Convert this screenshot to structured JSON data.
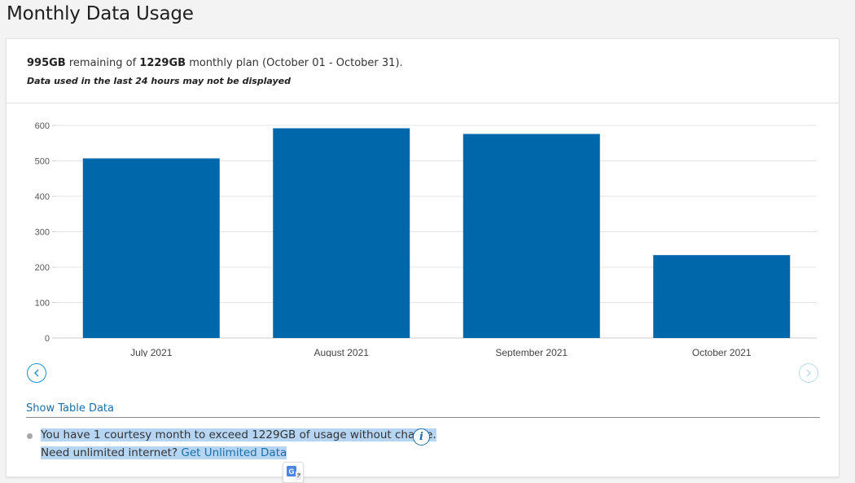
{
  "page": {
    "title": "Monthly Data Usage"
  },
  "summary": {
    "remaining": "995GB",
    "remaining_suffix": " remaining of ",
    "plan_total": "1229GB",
    "plan_suffix": " monthly plan (October 01 - October 31).",
    "disclaimer": "Data used in the last 24 hours may not be displayed"
  },
  "chart_data": {
    "type": "bar",
    "categories": [
      "July 2021",
      "August 2021",
      "September 2021",
      "October 2021"
    ],
    "values": [
      507,
      592,
      576,
      234
    ],
    "ylim": [
      0,
      600
    ],
    "yticks": [
      0,
      100,
      200,
      300,
      400,
      500,
      600
    ],
    "grid": true,
    "bar_color": "#0067ab"
  },
  "controls": {
    "prev_icon": "chevron-left-icon",
    "next_icon": "chevron-right-icon",
    "show_table_label": "Show Table Data"
  },
  "notices": {
    "courtesy_text": "You have 1 courtesy month to exceed 1229GB of usage without charge.",
    "unlimited_prefix": "Need unlimited internet?",
    "unlimited_link": "Get Unlimited Data"
  },
  "colors": {
    "accent": "#1a6fa8",
    "bar": "#0067ab",
    "highlight": "#b5d5f3"
  }
}
